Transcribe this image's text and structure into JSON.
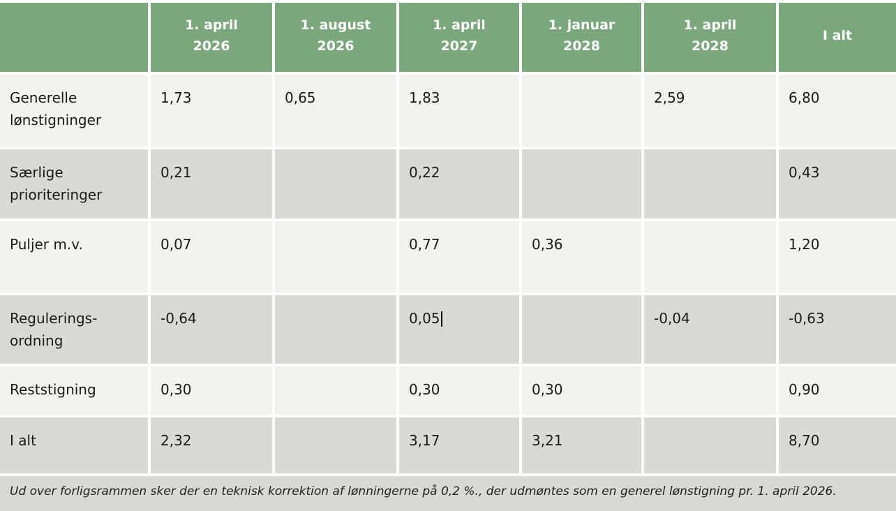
{
  "table": {
    "header": {
      "columns": [
        "1. april\n2026",
        "1. august\n2026",
        "1. april\n2027",
        "1. januar\n2028",
        "1. april\n2028",
        "I alt"
      ]
    },
    "rows": [
      {
        "label": "Generelle lønstigninger",
        "values": [
          "1,73",
          "0,65",
          "1,83",
          "",
          "2,59",
          "6,80"
        ]
      },
      {
        "label": "Særlige prioriteringer",
        "values": [
          "0,21",
          "",
          "0,22",
          "",
          "",
          "0,43"
        ]
      },
      {
        "label": "Puljer m.v.",
        "values": [
          "0,07",
          "",
          "0,77",
          "0,36",
          "",
          "1,20"
        ]
      },
      {
        "label": "Regulerings-ordning",
        "values": [
          "-0,64",
          "",
          "0,05",
          "",
          "-0,04",
          "-0,63"
        ]
      },
      {
        "label": "Reststigning",
        "values": [
          "0,30",
          "",
          "0,30",
          "0,30",
          "",
          "0,90"
        ]
      },
      {
        "label": "I alt",
        "values": [
          "2,32",
          "",
          "3,17",
          "3,21",
          "",
          "8,70"
        ]
      }
    ],
    "footnote": "Ud over forligsrammen sker der en teknisk korrektion af lønningerne på 0,2 %., der udmøntes som en generel lønstigning pr. 1. april 2026."
  },
  "colors": {
    "header_green": "#7aa77c",
    "row_light": "#f2f2f1",
    "row_dark": "#d9d9d7",
    "footnote_bg": "#d8d8d6",
    "text": "#1a1a1a",
    "header_text": "#ffffff"
  }
}
